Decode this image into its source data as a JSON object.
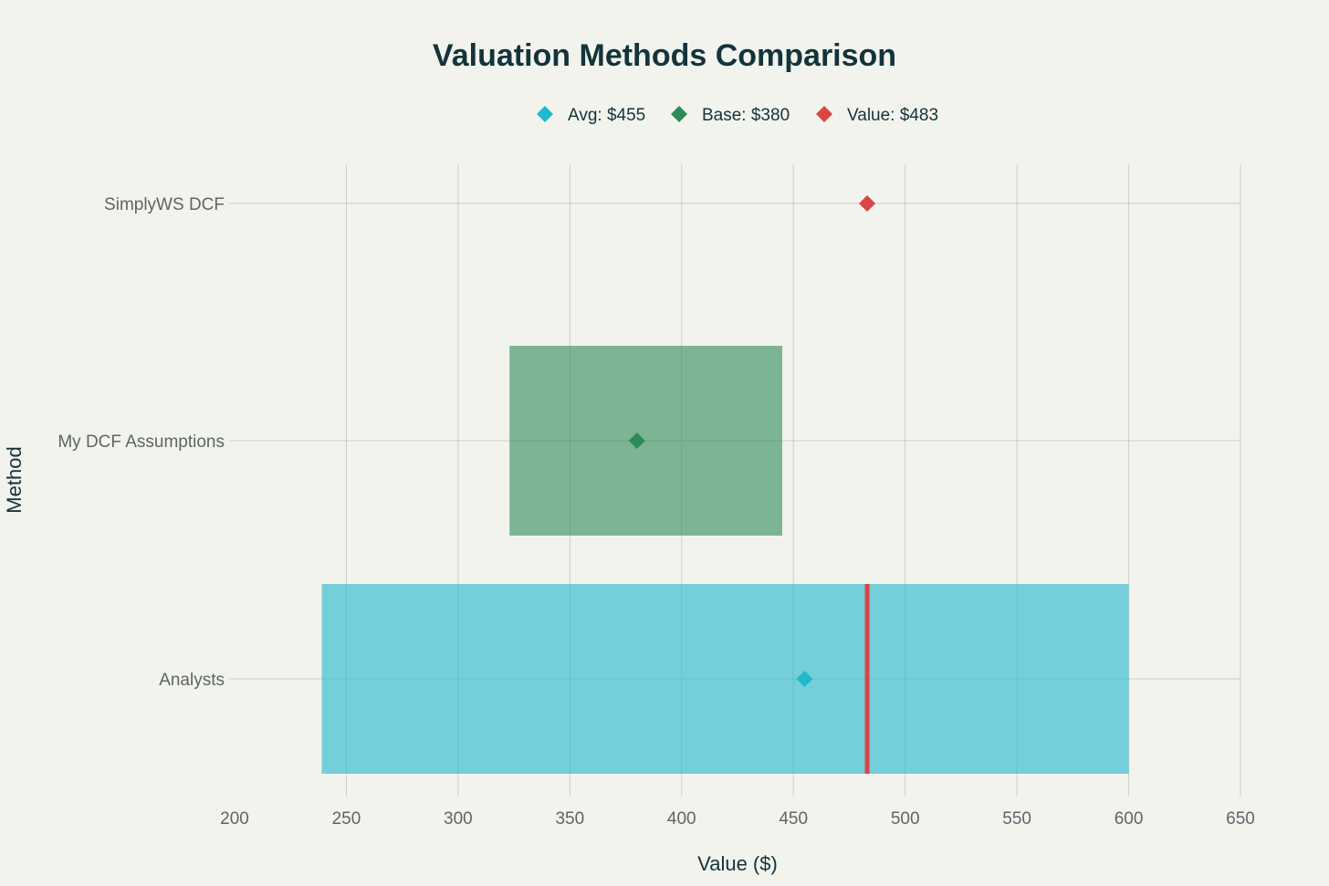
{
  "chart_data": {
    "type": "bar",
    "title": "Valuation Methods Comparison",
    "xlabel": "Value ($)",
    "ylabel": "Method",
    "xlim": [
      200,
      650
    ],
    "xticks": [
      200,
      250,
      300,
      350,
      400,
      450,
      500,
      550,
      600,
      650
    ],
    "xtick_labels": [
      "200",
      "250",
      "300",
      "350",
      "400",
      "450",
      "500",
      "550",
      "600",
      "650"
    ],
    "categories": [
      "Analysts",
      "My DCF Assumptions",
      "SimplyWS DCF"
    ],
    "legend_position": "top-center",
    "grid": true,
    "ranges": [
      {
        "category": "Analysts",
        "low": 239,
        "high": 600,
        "color": "#1fb8cd"
      },
      {
        "category": "My DCF Assumptions",
        "low": 323,
        "high": 445,
        "color": "#2e8b57"
      }
    ],
    "reference_line": {
      "category": "Analysts",
      "value": 483,
      "color": "#db4545"
    },
    "series": [
      {
        "name": "Avg: $455",
        "category": "Analysts",
        "value": 455,
        "color": "#1fb8cd"
      },
      {
        "name": "Base: $380",
        "category": "My DCF Assumptions",
        "value": 380,
        "color": "#2e8b57"
      },
      {
        "name": "Value: $483",
        "category": "SimplyWS DCF",
        "value": 483,
        "color": "#db4545"
      }
    ]
  }
}
